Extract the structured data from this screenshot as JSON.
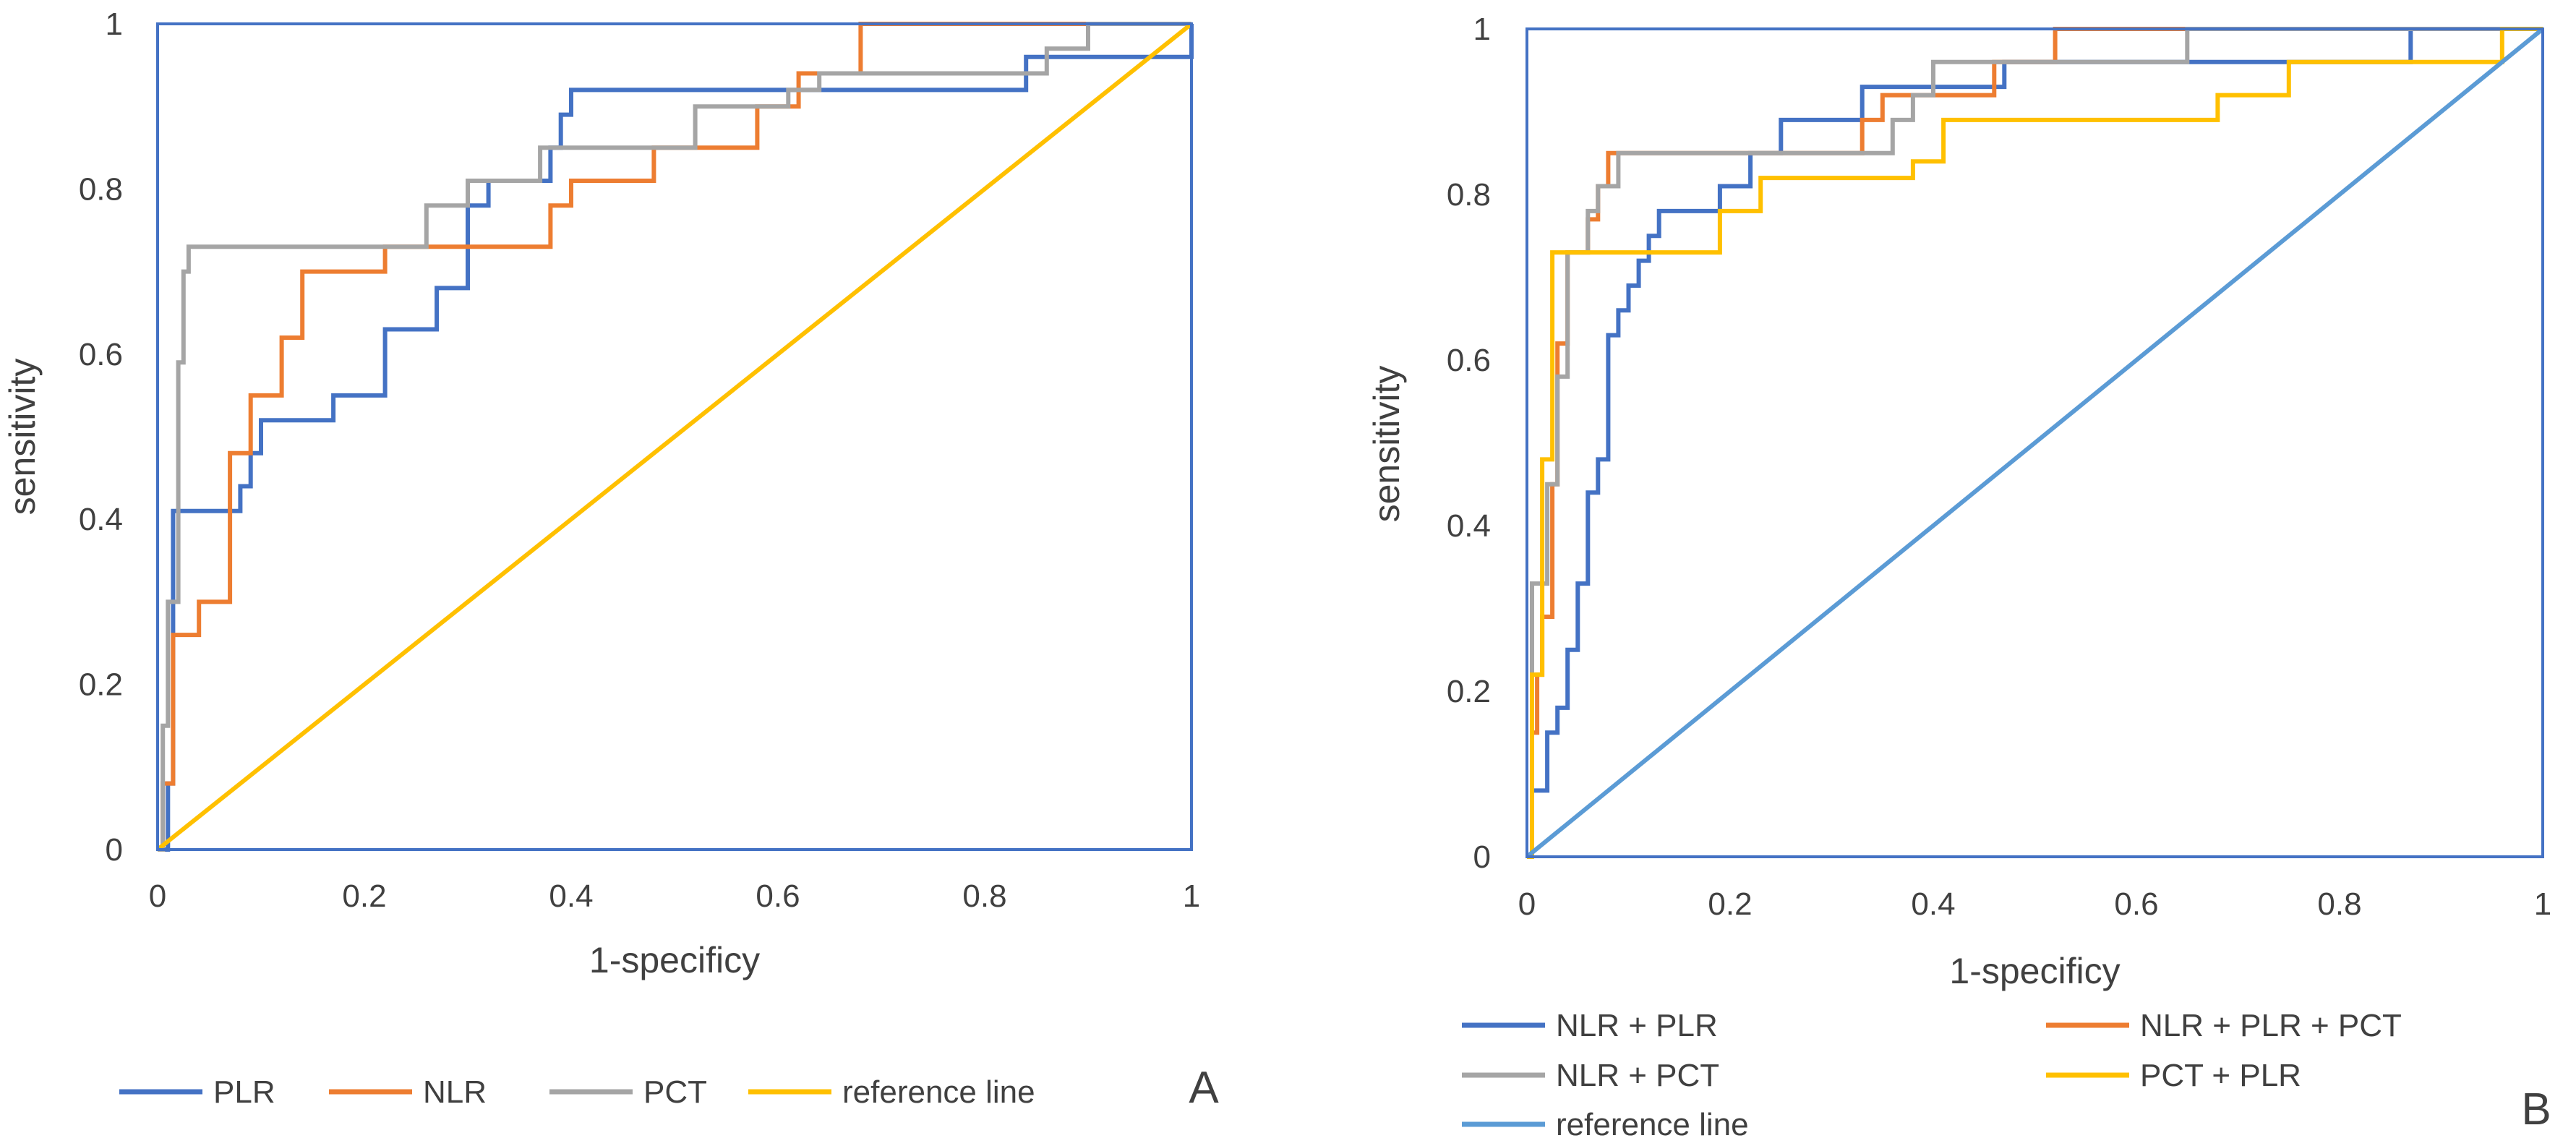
{
  "colors": {
    "blue": "#4472C4",
    "orange": "#ED7D31",
    "gray": "#A5A5A5",
    "yellow": "#FFC000",
    "lightblue": "#5B9BD5",
    "frame": "#4472C4",
    "text": "#404040"
  },
  "chart_data": [
    {
      "type": "line",
      "panel_label": "A",
      "title": "",
      "xlabel": "1-specificy",
      "ylabel": "sensitivity",
      "xlim": [
        0,
        1
      ],
      "ylim": [
        0,
        1
      ],
      "x_ticks": [
        "0",
        "0.2",
        "0.4",
        "0.6",
        "0.8",
        "1"
      ],
      "y_ticks": [
        "0",
        "0.2",
        "0.4",
        "0.6",
        "0.8",
        "1"
      ],
      "grid": false,
      "legend_position": "bottom",
      "series": [
        {
          "name": "PLR",
          "color": "#4472C4",
          "points": [
            [
              0,
              0
            ],
            [
              0.01,
              0
            ],
            [
              0.01,
              0.08
            ],
            [
              0.015,
              0.08
            ],
            [
              0.015,
              0.41
            ],
            [
              0.08,
              0.41
            ],
            [
              0.08,
              0.44
            ],
            [
              0.09,
              0.44
            ],
            [
              0.09,
              0.48
            ],
            [
              0.1,
              0.48
            ],
            [
              0.1,
              0.52
            ],
            [
              0.17,
              0.52
            ],
            [
              0.17,
              0.55
            ],
            [
              0.22,
              0.55
            ],
            [
              0.22,
              0.63
            ],
            [
              0.27,
              0.63
            ],
            [
              0.27,
              0.68
            ],
            [
              0.3,
              0.68
            ],
            [
              0.3,
              0.78
            ],
            [
              0.32,
              0.78
            ],
            [
              0.32,
              0.81
            ],
            [
              0.38,
              0.81
            ],
            [
              0.38,
              0.85
            ],
            [
              0.39,
              0.85
            ],
            [
              0.39,
              0.89
            ],
            [
              0.4,
              0.89
            ],
            [
              0.4,
              0.92
            ],
            [
              0.84,
              0.92
            ],
            [
              0.84,
              0.96
            ],
            [
              1,
              0.96
            ],
            [
              1,
              1
            ]
          ]
        },
        {
          "name": "NLR",
          "color": "#ED7D31",
          "points": [
            [
              0,
              0
            ],
            [
              0.005,
              0
            ],
            [
              0.005,
              0.08
            ],
            [
              0.015,
              0.08
            ],
            [
              0.015,
              0.26
            ],
            [
              0.04,
              0.26
            ],
            [
              0.04,
              0.3
            ],
            [
              0.07,
              0.3
            ],
            [
              0.07,
              0.48
            ],
            [
              0.09,
              0.48
            ],
            [
              0.09,
              0.55
            ],
            [
              0.12,
              0.55
            ],
            [
              0.12,
              0.62
            ],
            [
              0.14,
              0.62
            ],
            [
              0.14,
              0.7
            ],
            [
              0.22,
              0.7
            ],
            [
              0.22,
              0.73
            ],
            [
              0.38,
              0.73
            ],
            [
              0.38,
              0.78
            ],
            [
              0.4,
              0.78
            ],
            [
              0.4,
              0.81
            ],
            [
              0.48,
              0.81
            ],
            [
              0.48,
              0.85
            ],
            [
              0.58,
              0.85
            ],
            [
              0.58,
              0.9
            ],
            [
              0.62,
              0.9
            ],
            [
              0.62,
              0.94
            ],
            [
              0.68,
              0.94
            ],
            [
              0.68,
              1
            ],
            [
              1,
              1
            ]
          ]
        },
        {
          "name": "PCT",
          "color": "#A5A5A5",
          "points": [
            [
              0,
              0
            ],
            [
              0.005,
              0
            ],
            [
              0.005,
              0.15
            ],
            [
              0.01,
              0.15
            ],
            [
              0.01,
              0.3
            ],
            [
              0.02,
              0.3
            ],
            [
              0.02,
              0.59
            ],
            [
              0.025,
              0.59
            ],
            [
              0.025,
              0.7
            ],
            [
              0.03,
              0.7
            ],
            [
              0.03,
              0.73
            ],
            [
              0.26,
              0.73
            ],
            [
              0.26,
              0.78
            ],
            [
              0.3,
              0.78
            ],
            [
              0.3,
              0.81
            ],
            [
              0.37,
              0.81
            ],
            [
              0.37,
              0.85
            ],
            [
              0.52,
              0.85
            ],
            [
              0.52,
              0.9
            ],
            [
              0.61,
              0.9
            ],
            [
              0.61,
              0.92
            ],
            [
              0.64,
              0.92
            ],
            [
              0.64,
              0.94
            ],
            [
              0.86,
              0.94
            ],
            [
              0.86,
              0.97
            ],
            [
              0.9,
              0.97
            ],
            [
              0.9,
              1
            ],
            [
              1,
              1
            ]
          ]
        },
        {
          "name": "reference line",
          "color": "#FFC000",
          "points": [
            [
              0,
              0
            ],
            [
              1,
              1
            ]
          ]
        }
      ]
    },
    {
      "type": "line",
      "panel_label": "B",
      "title": "",
      "xlabel": "1-specificy",
      "ylabel": "sensitivity",
      "xlim": [
        0,
        1
      ],
      "ylim": [
        0,
        1
      ],
      "x_ticks": [
        "0",
        "0.2",
        "0.4",
        "0.6",
        "0.8",
        "1"
      ],
      "y_ticks": [
        "0",
        "0.2",
        "0.4",
        "0.6",
        "0.8",
        "1"
      ],
      "grid": false,
      "legend_position": "bottom",
      "series": [
        {
          "name": "NLR + PLR",
          "color": "#4472C4",
          "points": [
            [
              0,
              0
            ],
            [
              0.005,
              0
            ],
            [
              0.005,
              0.08
            ],
            [
              0.02,
              0.08
            ],
            [
              0.02,
              0.15
            ],
            [
              0.03,
              0.15
            ],
            [
              0.03,
              0.18
            ],
            [
              0.04,
              0.18
            ],
            [
              0.04,
              0.25
            ],
            [
              0.05,
              0.25
            ],
            [
              0.05,
              0.33
            ],
            [
              0.06,
              0.33
            ],
            [
              0.06,
              0.44
            ],
            [
              0.07,
              0.44
            ],
            [
              0.07,
              0.48
            ],
            [
              0.08,
              0.48
            ],
            [
              0.08,
              0.63
            ],
            [
              0.09,
              0.63
            ],
            [
              0.09,
              0.66
            ],
            [
              0.1,
              0.66
            ],
            [
              0.1,
              0.69
            ],
            [
              0.11,
              0.69
            ],
            [
              0.11,
              0.72
            ],
            [
              0.12,
              0.72
            ],
            [
              0.12,
              0.75
            ],
            [
              0.13,
              0.75
            ],
            [
              0.13,
              0.78
            ],
            [
              0.19,
              0.78
            ],
            [
              0.19,
              0.81
            ],
            [
              0.22,
              0.81
            ],
            [
              0.22,
              0.85
            ],
            [
              0.25,
              0.85
            ],
            [
              0.25,
              0.89
            ],
            [
              0.33,
              0.89
            ],
            [
              0.33,
              0.93
            ],
            [
              0.47,
              0.93
            ],
            [
              0.47,
              0.96
            ],
            [
              0.87,
              0.96
            ],
            [
              0.87,
              1
            ],
            [
              1,
              1
            ]
          ]
        },
        {
          "name": "NLR + PLR + PCT",
          "color": "#ED7D31",
          "points": [
            [
              0,
              0
            ],
            [
              0.005,
              0
            ],
            [
              0.005,
              0.15
            ],
            [
              0.01,
              0.15
            ],
            [
              0.01,
              0.22
            ],
            [
              0.015,
              0.22
            ],
            [
              0.015,
              0.29
            ],
            [
              0.025,
              0.29
            ],
            [
              0.025,
              0.45
            ],
            [
              0.03,
              0.45
            ],
            [
              0.03,
              0.62
            ],
            [
              0.04,
              0.62
            ],
            [
              0.04,
              0.73
            ],
            [
              0.06,
              0.73
            ],
            [
              0.06,
              0.77
            ],
            [
              0.07,
              0.77
            ],
            [
              0.07,
              0.81
            ],
            [
              0.08,
              0.81
            ],
            [
              0.08,
              0.85
            ],
            [
              0.33,
              0.85
            ],
            [
              0.33,
              0.89
            ],
            [
              0.35,
              0.89
            ],
            [
              0.35,
              0.92
            ],
            [
              0.46,
              0.92
            ],
            [
              0.46,
              0.96
            ],
            [
              0.52,
              0.96
            ],
            [
              0.52,
              1
            ],
            [
              1,
              1
            ]
          ]
        },
        {
          "name": "NLR + PCT",
          "color": "#A5A5A5",
          "points": [
            [
              0,
              0
            ],
            [
              0.005,
              0
            ],
            [
              0.005,
              0.33
            ],
            [
              0.02,
              0.33
            ],
            [
              0.02,
              0.45
            ],
            [
              0.03,
              0.45
            ],
            [
              0.03,
              0.58
            ],
            [
              0.04,
              0.58
            ],
            [
              0.04,
              0.73
            ],
            [
              0.06,
              0.73
            ],
            [
              0.06,
              0.78
            ],
            [
              0.07,
              0.78
            ],
            [
              0.07,
              0.81
            ],
            [
              0.09,
              0.81
            ],
            [
              0.09,
              0.85
            ],
            [
              0.36,
              0.85
            ],
            [
              0.36,
              0.89
            ],
            [
              0.38,
              0.89
            ],
            [
              0.38,
              0.92
            ],
            [
              0.4,
              0.92
            ],
            [
              0.4,
              0.96
            ],
            [
              0.65,
              0.96
            ],
            [
              0.65,
              1
            ],
            [
              1,
              1
            ]
          ]
        },
        {
          "name": "PCT + PLR",
          "color": "#FFC000",
          "points": [
            [
              0,
              0
            ],
            [
              0.005,
              0
            ],
            [
              0.005,
              0.22
            ],
            [
              0.015,
              0.22
            ],
            [
              0.015,
              0.48
            ],
            [
              0.025,
              0.48
            ],
            [
              0.025,
              0.73
            ],
            [
              0.19,
              0.73
            ],
            [
              0.19,
              0.78
            ],
            [
              0.23,
              0.78
            ],
            [
              0.23,
              0.82
            ],
            [
              0.38,
              0.82
            ],
            [
              0.38,
              0.84
            ],
            [
              0.41,
              0.84
            ],
            [
              0.41,
              0.89
            ],
            [
              0.68,
              0.89
            ],
            [
              0.68,
              0.92
            ],
            [
              0.75,
              0.92
            ],
            [
              0.75,
              0.96
            ],
            [
              0.96,
              0.96
            ],
            [
              0.96,
              1
            ],
            [
              1,
              1
            ]
          ]
        },
        {
          "name": "reference line",
          "color": "#5B9BD5",
          "points": [
            [
              0,
              0
            ],
            [
              1,
              1
            ]
          ]
        }
      ]
    }
  ]
}
